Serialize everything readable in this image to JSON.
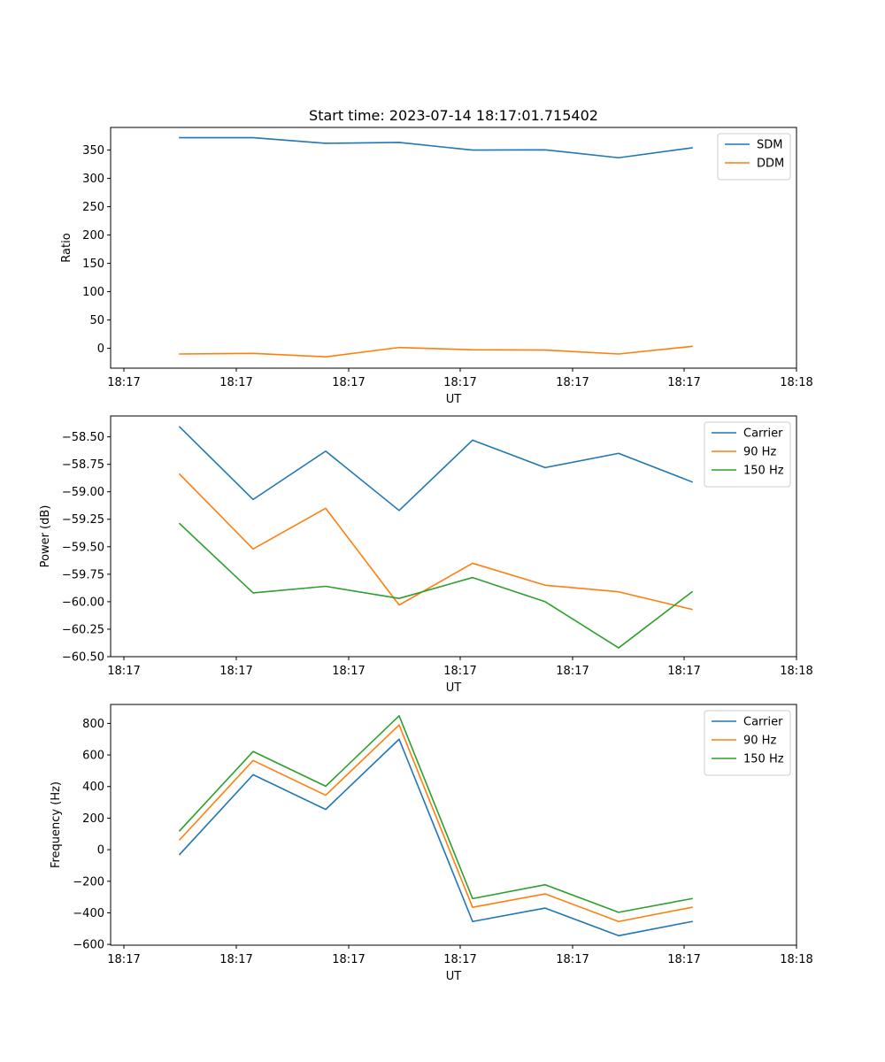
{
  "title": "Start time: 2023-07-14 18:17:01.715402",
  "colors": {
    "c0": "#1f77b4",
    "c1": "#ff7f0e",
    "c2": "#2ca02c"
  },
  "chart_data": [
    {
      "type": "line",
      "xlabel": "UT",
      "ylabel": "Ratio",
      "x_ticks": [
        "18:17",
        "18:17",
        "18:17",
        "18:17",
        "18:17",
        "18:17",
        "18:18"
      ],
      "ylim": [
        -35,
        390
      ],
      "y_ticks": [
        0,
        50,
        100,
        150,
        200,
        250,
        300,
        350
      ],
      "y_tick_labels": [
        "0",
        "50",
        "100",
        "150",
        "200",
        "250",
        "300",
        "350"
      ],
      "legend": "top-right",
      "series": [
        {
          "name": "SDM",
          "values": [
            372,
            372,
            362,
            363.5,
            350,
            350.5,
            336.5,
            354
          ]
        },
        {
          "name": "DDM",
          "values": [
            -10,
            -9,
            -15,
            1.5,
            -2.5,
            -3,
            -10,
            3.5
          ]
        }
      ]
    },
    {
      "type": "line",
      "xlabel": "UT",
      "ylabel": "Power (dB)",
      "x_ticks": [
        "18:17",
        "18:17",
        "18:17",
        "18:17",
        "18:17",
        "18:17",
        "18:18"
      ],
      "ylim": [
        -60.5,
        -58.31
      ],
      "y_ticks": [
        -58.5,
        -58.75,
        -59.0,
        -59.25,
        -59.5,
        -59.75,
        -60.0,
        -60.25,
        -60.5
      ],
      "y_tick_labels": [
        "−58.50",
        "−58.75",
        "−59.00",
        "−59.25",
        "−59.50",
        "−59.75",
        "−60.00",
        "−60.25",
        "−60.50"
      ],
      "legend": "top-right",
      "series": [
        {
          "name": "Carrier",
          "values": [
            -58.41,
            -59.07,
            -58.63,
            -59.17,
            -58.53,
            -58.78,
            -58.65,
            -58.91
          ]
        },
        {
          "name": "90 Hz",
          "values": [
            -58.84,
            -59.52,
            -59.15,
            -60.03,
            -59.65,
            -59.85,
            -59.91,
            -60.07
          ]
        },
        {
          "name": "150 Hz",
          "values": [
            -59.29,
            -59.92,
            -59.86,
            -59.97,
            -59.78,
            -60.0,
            -60.42,
            -59.91
          ]
        }
      ]
    },
    {
      "type": "line",
      "xlabel": "UT",
      "ylabel": "Frequency (Hz)",
      "x_ticks": [
        "18:17",
        "18:17",
        "18:17",
        "18:17",
        "18:17",
        "18:17",
        "18:18"
      ],
      "ylim": [
        -605,
        920
      ],
      "y_ticks": [
        -600,
        -400,
        -200,
        0,
        200,
        400,
        600,
        800
      ],
      "y_tick_labels": [
        "−600",
        "−400",
        "−200",
        "0",
        "200",
        "400",
        "600",
        "800"
      ],
      "legend": "top-right",
      "series": [
        {
          "name": "Carrier",
          "values": [
            -30,
            475,
            255,
            700,
            -455,
            -370,
            -545,
            -455
          ]
        },
        {
          "name": "90 Hz",
          "values": [
            63,
            565,
            345,
            790,
            -365,
            -280,
            -455,
            -365
          ]
        },
        {
          "name": "150 Hz",
          "values": [
            120,
            622,
            402,
            848,
            -310,
            -222,
            -397,
            -310
          ]
        }
      ]
    }
  ]
}
